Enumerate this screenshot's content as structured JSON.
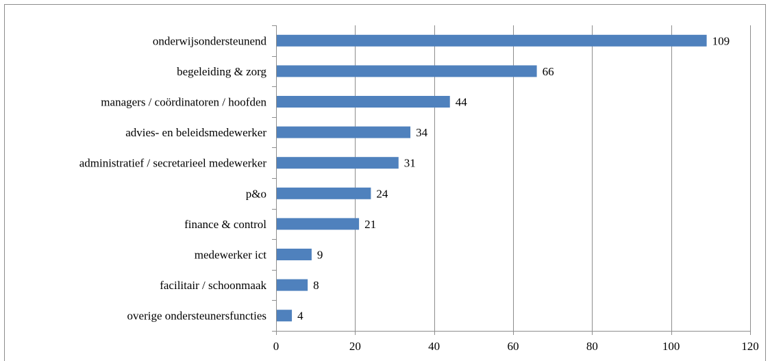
{
  "chart_data": {
    "type": "bar",
    "orientation": "horizontal",
    "categories": [
      "onderwijsondersteunend",
      "begeleiding & zorg",
      "managers / coördinatoren / hoofden",
      "advies- en beleidsmedewerker",
      "administratief / secretarieel medewerker",
      "p&o",
      "finance & control",
      "medewerker ict",
      "facilitair / schoonmaak",
      "overige ondersteunersfuncties"
    ],
    "values": [
      109,
      66,
      44,
      34,
      31,
      24,
      21,
      9,
      8,
      4
    ],
    "data_labels": [
      "109",
      "66",
      "44",
      "34",
      "31",
      "24",
      "21",
      "9",
      "8",
      "4"
    ],
    "xlim": [
      0,
      120
    ],
    "xticks": [
      0,
      20,
      40,
      60,
      80,
      100,
      120
    ],
    "xtick_labels": [
      "0",
      "20",
      "40",
      "60",
      "80",
      "100",
      "120"
    ],
    "title": "",
    "xlabel": "",
    "ylabel": "",
    "grid": "vertical",
    "legend": "none",
    "bar_color": "#4F81BD",
    "grid_color": "#8c8c8c"
  }
}
